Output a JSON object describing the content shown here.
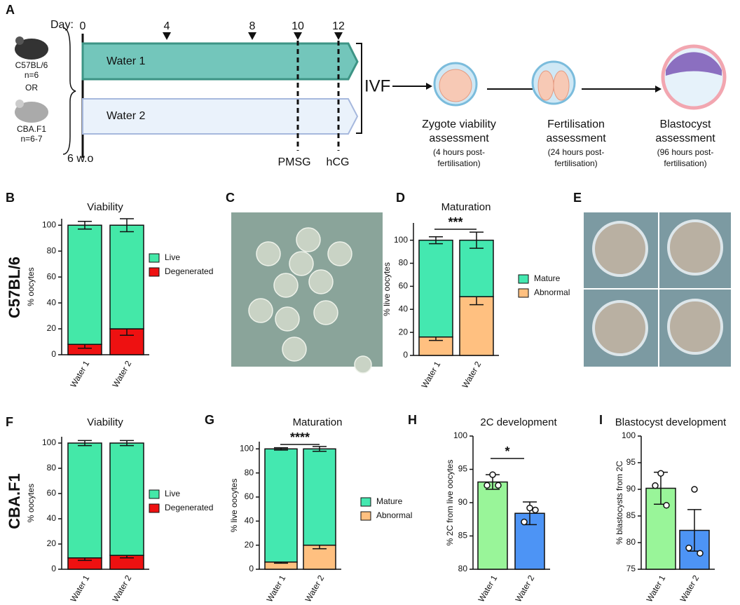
{
  "schematic": {
    "panel": "A",
    "day_label": "Day:",
    "days": [
      0,
      4,
      8,
      10,
      12
    ],
    "strain1": "C57BL/6",
    "n1": "n=6",
    "or": "OR",
    "strain2": "CBA.F1",
    "n2": "n=6-7",
    "age": "6 w.o",
    "group1": "Water 1",
    "group2": "Water 2",
    "pmsg": "PMSG",
    "hcg": "hCG",
    "ivf": "IVF",
    "stages": [
      {
        "title": [
          "Zygote viability",
          "assessment"
        ],
        "note": [
          "(4 hours post-",
          "fertilisation)"
        ]
      },
      {
        "title": [
          "Fertilisation",
          "assessment"
        ],
        "note": [
          "(24 hours post-",
          "fertilisation)"
        ]
      },
      {
        "title": [
          "Blastocyst",
          "assessment"
        ],
        "note": [
          "(96 hours post-",
          "fertilisation)"
        ]
      }
    ]
  },
  "row_labels": [
    "C57BL/6",
    "CBA.F1"
  ],
  "photos": [
    {
      "panel": "C"
    },
    {
      "panel": "E"
    }
  ],
  "chart_data": [
    {
      "type": "stacked_bar",
      "panel": "B",
      "title": "Viability",
      "y_label": "% oocytes",
      "categories": [
        "Water 1",
        "Water 2"
      ],
      "series": [
        {
          "name": "Degenerated",
          "color": "#ee1111",
          "values": [
            8,
            20
          ],
          "errors": [
            3,
            5
          ]
        },
        {
          "name": "Live",
          "color": "#44e8a8",
          "values": [
            92,
            80
          ],
          "errors": [
            3,
            5
          ]
        }
      ],
      "ylim": [
        0,
        105
      ],
      "yticks": [
        0,
        20,
        40,
        60,
        80,
        100
      ]
    },
    {
      "type": "stacked_bar",
      "panel": "D",
      "title": "Maturation",
      "y_label": "% live oocytes",
      "categories": [
        "Water 1",
        "Water 2"
      ],
      "series": [
        {
          "name": "Abnormal",
          "color": "#ffc080",
          "values": [
            16,
            51
          ],
          "errors": [
            3,
            7
          ]
        },
        {
          "name": "Mature",
          "color": "#44e8b0",
          "values": [
            84,
            49
          ],
          "errors": [
            3,
            7
          ]
        }
      ],
      "ylim": [
        0,
        115
      ],
      "yticks": [
        0,
        20,
        40,
        60,
        80,
        100
      ],
      "significance": "***"
    },
    {
      "type": "stacked_bar",
      "panel": "F",
      "title": "Viability",
      "y_label": "% oocytes",
      "categories": [
        "Water 1",
        "Water 2"
      ],
      "series": [
        {
          "name": "Degenerated",
          "color": "#ee1111",
          "values": [
            9,
            11
          ],
          "errors": [
            2,
            2
          ]
        },
        {
          "name": "Live",
          "color": "#44e8a8",
          "values": [
            91,
            89
          ],
          "errors": [
            2,
            2
          ]
        }
      ],
      "ylim": [
        0,
        105
      ],
      "yticks": [
        0,
        20,
        40,
        60,
        80,
        100
      ]
    },
    {
      "type": "stacked_bar",
      "panel": "G",
      "title": "Maturation",
      "y_label": "% live oocytes",
      "categories": [
        "Water 1",
        "Water 2"
      ],
      "series": [
        {
          "name": "Abnormal",
          "color": "#ffc080",
          "values": [
            6,
            20
          ],
          "errors": [
            1,
            3
          ]
        },
        {
          "name": "Mature",
          "color": "#44e8b0",
          "values": [
            94,
            80
          ],
          "errors": [
            1,
            2
          ]
        }
      ],
      "ylim": [
        0,
        106
      ],
      "yticks": [
        0,
        20,
        40,
        60,
        80,
        100
      ],
      "significance": "****"
    },
    {
      "type": "bar",
      "panel": "H",
      "title": "2C development",
      "y_label": "% 2C from live oocytes",
      "categories": [
        "Water 1",
        "Water 2"
      ],
      "values": [
        93.1,
        88.4
      ],
      "errors": [
        1.1,
        1.7
      ],
      "colors": [
        "#99f599",
        "#4d94f5"
      ],
      "points": [
        [
          94.2,
          92.6,
          92.6
        ],
        [
          89.2,
          87.1,
          88.9
        ]
      ],
      "ylim": [
        80,
        100
      ],
      "yticks": [
        80,
        85,
        90,
        95,
        100
      ],
      "significance": "*"
    },
    {
      "type": "bar",
      "panel": "I",
      "title": "Blastocyst development",
      "y_label": "% blastocysts from 2C",
      "categories": [
        "Water 1",
        "Water 2"
      ],
      "values": [
        90.2,
        82.3
      ],
      "errors": [
        3,
        3.9
      ],
      "colors": [
        "#99f599",
        "#4d94f5"
      ],
      "points": [
        [
          93,
          90.7,
          87
        ],
        [
          90,
          79,
          78
        ]
      ],
      "ylim": [
        75,
        100
      ],
      "yticks": [
        75,
        80,
        85,
        90,
        95,
        100
      ]
    }
  ]
}
